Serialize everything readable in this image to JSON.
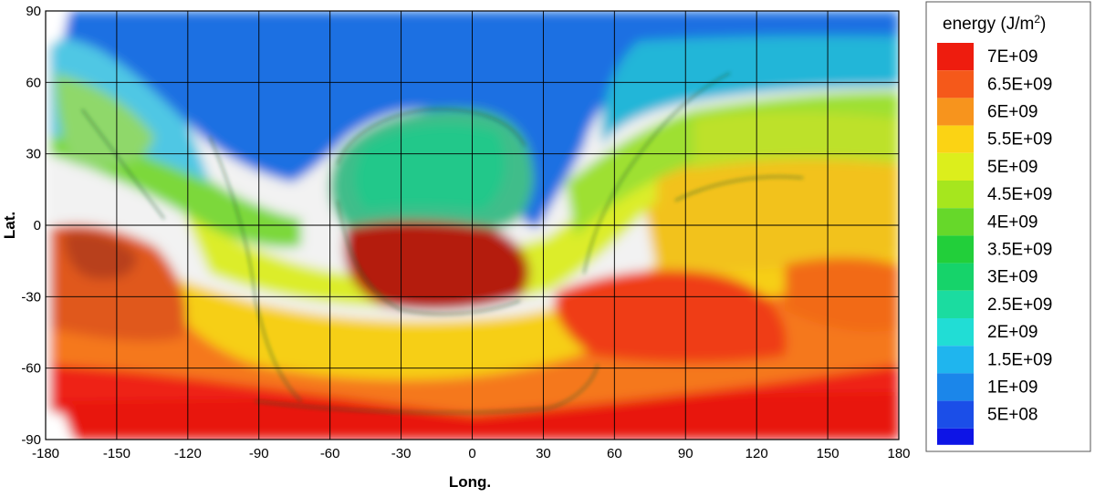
{
  "chart_data": {
    "type": "heatmap",
    "xlabel": "Long.",
    "ylabel": "Lat.",
    "xlim": [
      -180,
      180
    ],
    "ylim": [
      -90,
      90
    ],
    "x_ticks": [
      "-180",
      "-150",
      "-120",
      "-90",
      "-60",
      "-30",
      "0",
      "30",
      "60",
      "90",
      "120",
      "150",
      "180"
    ],
    "y_ticks": [
      "90",
      "60",
      "30",
      "0",
      "-30",
      "-60",
      "-90"
    ],
    "grid": true,
    "legend": {
      "title_main": "energy (J/m",
      "title_sup": "2",
      "title_end": ")",
      "placement": "right",
      "levels": [
        {
          "label": "7E+09",
          "color": "#ee1c0e"
        },
        {
          "label": "6.5E+09",
          "color": "#f5591a"
        },
        {
          "label": "6E+09",
          "color": "#f7941d"
        },
        {
          "label": "5.5E+09",
          "color": "#fbd314"
        },
        {
          "label": "5E+09",
          "color": "#dcee1c"
        },
        {
          "label": "4.5E+09",
          "color": "#a6e61e"
        },
        {
          "label": "4E+09",
          "color": "#66d82a"
        },
        {
          "label": "3.5E+09",
          "color": "#22cf3a"
        },
        {
          "label": "3E+09",
          "color": "#16d36a"
        },
        {
          "label": "2.5E+09",
          "color": "#1bdca0"
        },
        {
          "label": "2E+09",
          "color": "#21ddd5"
        },
        {
          "label": "1.5E+09",
          "color": "#1fb5ee"
        },
        {
          "label": "1E+09",
          "color": "#1b86ea"
        },
        {
          "label": "5E+08",
          "color": "#1b4ee8"
        },
        {
          "label": "",
          "color": "#0d14e6"
        }
      ]
    }
  }
}
